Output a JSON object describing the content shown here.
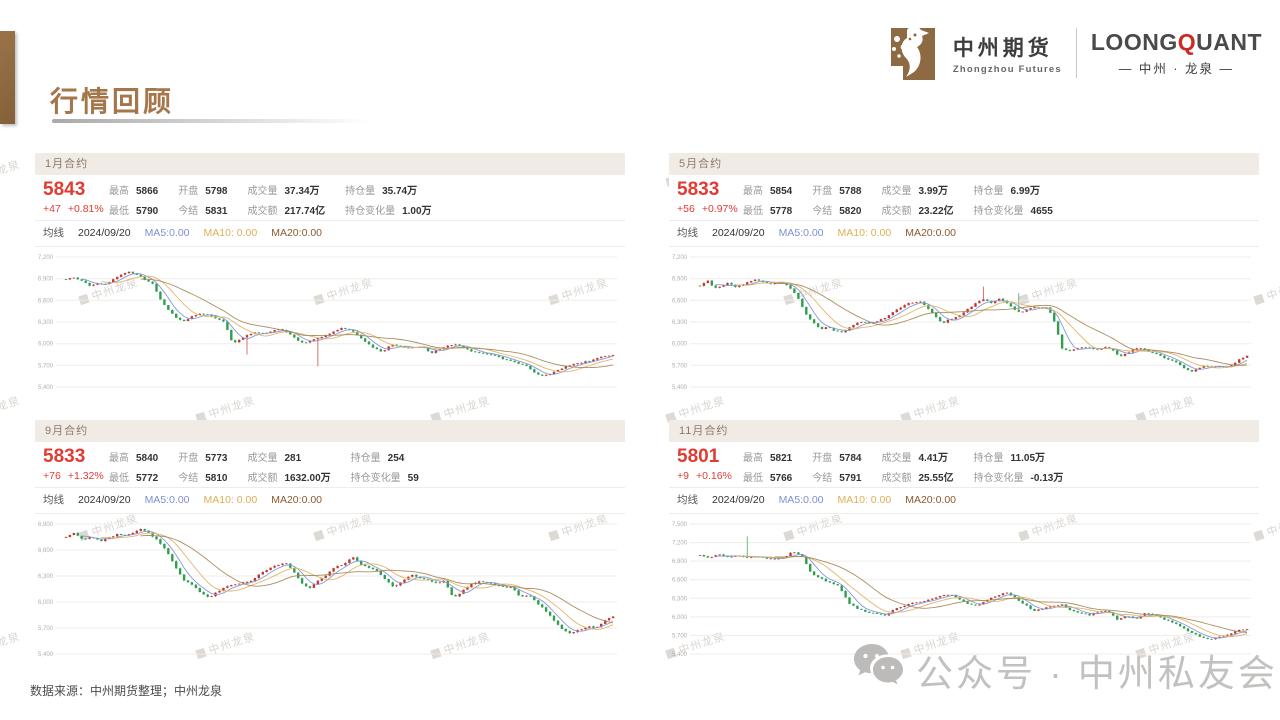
{
  "page": {
    "title": "行情回顾",
    "footer": "数据来源：中州期货整理；中州龙泉",
    "watermark_text": "中州龙泉",
    "bottom_watermark": "公众号 · 中州私友会"
  },
  "brand": {
    "company_cn": "中州期货",
    "company_en": "Zhongzhou Futures",
    "product_parts": [
      "LOONG",
      "Q",
      "UANT"
    ],
    "product_sub": "— 中州 · 龙泉 —"
  },
  "colors": {
    "up": "#c0392f",
    "down": "#2f9e4f",
    "ma5": "#8093d8",
    "ma10": "#e0b261",
    "ma20": "#a7875a",
    "price_red": "#e23b33",
    "accent_brown": "#a5764a",
    "grid": "#efedea",
    "tick": "#b2afab"
  },
  "panels": [
    {
      "title": "1月合约",
      "price": "5843",
      "change": "+47",
      "change_pct": "+0.81%",
      "stat_cols": [
        [
          {
            "label": "最高",
            "value": "5866"
          },
          {
            "label": "最低",
            "value": "5790"
          }
        ],
        [
          {
            "label": "开盘",
            "value": "5798"
          },
          {
            "label": "今结",
            "value": "5831"
          }
        ],
        [
          {
            "label": "成交量",
            "value": "37.34万"
          },
          {
            "label": "成交额",
            "value": "217.74亿"
          }
        ],
        [
          {
            "label": "持仓量",
            "value": "35.74万"
          },
          {
            "label": "持仓变化量",
            "value": "1.00万"
          }
        ]
      ],
      "ma": {
        "label": "均线",
        "date": "2024/09/20",
        "ma5": "MA5:0.00",
        "ma10": "MA10: 0.00",
        "ma20": "MA20:0.00"
      }
    },
    {
      "title": "5月合约",
      "price": "5833",
      "change": "+56",
      "change_pct": "+0.97%",
      "stat_cols": [
        [
          {
            "label": "最高",
            "value": "5854"
          },
          {
            "label": "最低",
            "value": "5778"
          }
        ],
        [
          {
            "label": "开盘",
            "value": "5788"
          },
          {
            "label": "今结",
            "value": "5820"
          }
        ],
        [
          {
            "label": "成交量",
            "value": "3.99万"
          },
          {
            "label": "成交额",
            "value": "23.22亿"
          }
        ],
        [
          {
            "label": "持仓量",
            "value": "6.99万"
          },
          {
            "label": "持仓变化量",
            "value": "4655"
          }
        ]
      ],
      "ma": {
        "label": "均线",
        "date": "2024/09/20",
        "ma5": "MA5:0.00",
        "ma10": "MA10: 0.00",
        "ma20": "MA20:0.00"
      }
    },
    {
      "title": "9月合约",
      "price": "5833",
      "change": "+76",
      "change_pct": "+1.32%",
      "stat_cols": [
        [
          {
            "label": "最高",
            "value": "5840"
          },
          {
            "label": "最低",
            "value": "5772"
          }
        ],
        [
          {
            "label": "开盘",
            "value": "5773"
          },
          {
            "label": "今结",
            "value": "5810"
          }
        ],
        [
          {
            "label": "成交量",
            "value": "281"
          },
          {
            "label": "成交额",
            "value": "1632.00万"
          }
        ],
        [
          {
            "label": "持仓量",
            "value": "254"
          },
          {
            "label": "持仓变化量",
            "value": "59"
          }
        ]
      ],
      "ma": {
        "label": "均线",
        "date": "2024/09/20",
        "ma5": "MA5:0.00",
        "ma10": "MA10: 0.00",
        "ma20": "MA20:0.00"
      }
    },
    {
      "title": "11月合约",
      "price": "5801",
      "change": "+9",
      "change_pct": "+0.16%",
      "stat_cols": [
        [
          {
            "label": "最高",
            "value": "5821"
          },
          {
            "label": "最低",
            "value": "5766"
          }
        ],
        [
          {
            "label": "开盘",
            "value": "5784"
          },
          {
            "label": "今结",
            "value": "5791"
          }
        ],
        [
          {
            "label": "成交量",
            "value": "4.41万"
          },
          {
            "label": "成交额",
            "value": "25.55亿"
          }
        ],
        [
          {
            "label": "持仓量",
            "value": "11.05万"
          },
          {
            "label": "持仓变化量",
            "value": "-0.13万"
          }
        ]
      ],
      "ma": {
        "label": "均线",
        "date": "2024/09/20",
        "ma5": "MA5:0.00",
        "ma10": "MA10: 0.00",
        "ma20": "MA20:0.00"
      }
    }
  ],
  "chart_data": [
    {
      "type": "candlestick",
      "panel": "1月合约",
      "last_date": "2024/09/20",
      "last_close": 5843,
      "ylim": [
        5400,
        7200
      ],
      "yticks": [
        {
          "v": 7200,
          "label": "7,200"
        },
        {
          "v": 6900,
          "label": "6,900"
        },
        {
          "v": 6600,
          "label": "6,600"
        },
        {
          "v": 6300,
          "label": "6,300"
        },
        {
          "v": 6000,
          "label": "6,000"
        },
        {
          "v": 5700,
          "label": "5,700"
        },
        {
          "v": 5400,
          "label": "5,400"
        }
      ],
      "closes": [
        6890,
        6920,
        6870,
        6800,
        6840,
        6820,
        6900,
        6960,
        7000,
        6950,
        6880,
        6820,
        6600,
        6450,
        6350,
        6310,
        6380,
        6420,
        6390,
        6350,
        6300,
        6000,
        6060,
        6130,
        6160,
        6130,
        6180,
        6200,
        6150,
        6060,
        6010,
        6050,
        6080,
        6130,
        6180,
        6220,
        6180,
        6100,
        6000,
        5930,
        5880,
        6000,
        5960,
        5940,
        5960,
        5950,
        5870,
        5920,
        5960,
        6000,
        5950,
        5900,
        5880,
        5860,
        5840,
        5790,
        5760,
        5730,
        5700,
        5600,
        5560,
        5580,
        5630,
        5680,
        5710,
        5740,
        5760,
        5800,
        5830,
        5843
      ],
      "spikes": [
        {
          "pos": 0.33,
          "low": 5850
        },
        {
          "pos": 0.46,
          "low": 5690
        }
      ]
    },
    {
      "type": "candlestick",
      "panel": "5月合约",
      "last_date": "2024/09/20",
      "last_close": 5833,
      "ylim": [
        5400,
        7200
      ],
      "yticks": [
        {
          "v": 7200,
          "label": "7,200"
        },
        {
          "v": 6900,
          "label": "6,900"
        },
        {
          "v": 6600,
          "label": "6,600"
        },
        {
          "v": 6300,
          "label": "6,300"
        },
        {
          "v": 6000,
          "label": "6,000"
        },
        {
          "v": 5700,
          "label": "5,700"
        },
        {
          "v": 5400,
          "label": "5,400"
        }
      ],
      "closes": [
        6800,
        6880,
        6760,
        6800,
        6840,
        6780,
        6820,
        6860,
        6890,
        6850,
        6830,
        6860,
        6820,
        6750,
        6590,
        6400,
        6290,
        6200,
        6230,
        6180,
        6160,
        6220,
        6280,
        6300,
        6280,
        6320,
        6350,
        6420,
        6490,
        6550,
        6570,
        6590,
        6500,
        6390,
        6280,
        6330,
        6360,
        6430,
        6500,
        6570,
        6620,
        6560,
        6620,
        6580,
        6490,
        6430,
        6470,
        6510,
        6490,
        6500,
        6280,
        5920,
        5900,
        5940,
        5950,
        5930,
        5920,
        5950,
        5920,
        5820,
        5860,
        5920,
        5940,
        5900,
        5860,
        5820,
        5780,
        5740,
        5670,
        5610,
        5650,
        5700,
        5670,
        5690,
        5670,
        5700,
        5790,
        5833
      ],
      "spikes": [
        {
          "pos": 0.52,
          "high": 6790
        },
        {
          "pos": 0.585,
          "high": 6700
        }
      ]
    },
    {
      "type": "candlestick",
      "panel": "9月合约",
      "last_date": "2024/09/20",
      "last_close": 5833,
      "ylim": [
        5400,
        6900
      ],
      "yticks": [
        {
          "v": 6900,
          "label": "6,900"
        },
        {
          "v": 6600,
          "label": "6,600"
        },
        {
          "v": 6300,
          "label": "6,300"
        },
        {
          "v": 6000,
          "label": "6,000"
        },
        {
          "v": 5700,
          "label": "5,700"
        },
        {
          "v": 5400,
          "label": "5,400"
        }
      ],
      "closes": [
        6750,
        6800,
        6720,
        6760,
        6700,
        6740,
        6780,
        6760,
        6800,
        6850,
        6780,
        6700,
        6580,
        6400,
        6250,
        6200,
        6100,
        6050,
        6120,
        6180,
        6200,
        6220,
        6250,
        6320,
        6380,
        6420,
        6460,
        6350,
        6220,
        6160,
        6250,
        6320,
        6400,
        6440,
        6520,
        6440,
        6400,
        6360,
        6260,
        6160,
        6250,
        6320,
        6280,
        6260,
        6220,
        6240,
        6040,
        6120,
        6200,
        6240,
        6220,
        6200,
        6180,
        6160,
        6060,
        6080,
        5980,
        5900,
        5780,
        5680,
        5640,
        5680,
        5720,
        5700,
        5780,
        5833
      ],
      "spikes": []
    },
    {
      "type": "candlestick",
      "panel": "11月合约",
      "last_date": "2024/09/20",
      "last_close": 5801,
      "ylim": [
        5400,
        7500
      ],
      "yticks": [
        {
          "v": 7500,
          "label": "7,500"
        },
        {
          "v": 7200,
          "label": "7,200"
        },
        {
          "v": 6900,
          "label": "6,900"
        },
        {
          "v": 6600,
          "label": "6,600"
        },
        {
          "v": 6300,
          "label": "6,300"
        },
        {
          "v": 6000,
          "label": "6,000"
        },
        {
          "v": 5700,
          "label": "5,700"
        },
        {
          "v": 5400,
          "label": "5,400"
        }
      ],
      "closes": [
        7000,
        6950,
        7020,
        6960,
        7000,
        6950,
        6980,
        6950,
        6930,
        6960,
        7050,
        6980,
        6700,
        6620,
        6550,
        6500,
        6230,
        6130,
        6080,
        6050,
        6020,
        6130,
        6180,
        6230,
        6250,
        6290,
        6340,
        6370,
        6280,
        6200,
        6180,
        6280,
        6340,
        6400,
        6300,
        6200,
        6100,
        6130,
        6180,
        6200,
        6100,
        6060,
        6030,
        6080,
        6100,
        5950,
        6020,
        5970,
        6060,
        6040,
        5960,
        5910,
        5830,
        5740,
        5680,
        5630,
        5680,
        5710,
        5790,
        5801
      ],
      "spikes": [
        {
          "pos": 0.085,
          "high": 7300
        }
      ]
    }
  ]
}
